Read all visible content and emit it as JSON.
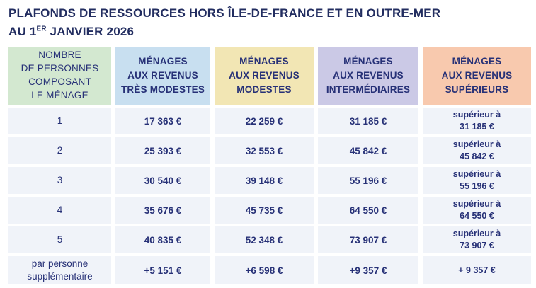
{
  "colors": {
    "title_text": "#222d60",
    "table_text": "#273177",
    "header_household_size_bg": "#d3e8d0",
    "header_tres_modestes_bg": "#c8dff0",
    "header_modestes_bg": "#f2e6b4",
    "header_intermediaires_bg": "#cbc9e6",
    "header_superieurs_bg": "#f8c9ae",
    "data_cell_bg": "#f0f3f9"
  },
  "title": {
    "line1": "PLAFONDS DE RESSOURCES HORS ÎLE-DE-FRANCE ET EN OUTRE-MER",
    "line2_prefix": "AU 1",
    "line2_sup": "ER",
    "line2_suffix": " JANVIER 2026"
  },
  "table": {
    "headers": [
      "NOMBRE\nDE PERSONNES\nCOMPOSANT\nLE MÉNAGE",
      "MÉNAGES\nAUX REVENUS\nTRÈS MODESTES",
      "MÉNAGES\nAUX REVENUS\nMODESTES",
      "MÉNAGES\nAUX REVENUS\nINTERMÉDIAIRES",
      "MÉNAGES\nAUX REVENUS\nSUPÉRIEURS"
    ],
    "rows": [
      {
        "label": "1",
        "values": [
          "17 363 €",
          "22 259 €",
          "31 185 €",
          "supérieur à\n31 185 €"
        ]
      },
      {
        "label": "2",
        "values": [
          "25 393 €",
          "32 553 €",
          "45 842 €",
          "supérieur à\n45 842 €"
        ]
      },
      {
        "label": "3",
        "values": [
          "30 540 €",
          "39 148 €",
          "55 196 €",
          "supérieur à\n55 196 €"
        ]
      },
      {
        "label": "4",
        "values": [
          "35 676 €",
          "45 735 €",
          "64 550 €",
          "supérieur à\n64 550 €"
        ]
      },
      {
        "label": "5",
        "values": [
          "40 835 €",
          "52 348 €",
          "73 907 €",
          "supérieur à\n73 907 €"
        ]
      },
      {
        "label": "par personne\nsupplémentaire",
        "values": [
          "+5 151 €",
          "+6 598 €",
          "+9 357 €",
          "+ 9 357 €"
        ]
      }
    ]
  },
  "chart_data": {
    "type": "table",
    "title": "Plafonds de ressources hors Île-de-France et en Outre-mer au 1er janvier 2026",
    "columns": [
      "Nombre de personnes composant le ménage",
      "Ménages aux revenus très modestes",
      "Ménages aux revenus modestes",
      "Ménages aux revenus intermédiaires",
      "Ménages aux revenus supérieurs"
    ],
    "rows": [
      [
        "1",
        "17 363 €",
        "22 259 €",
        "31 185 €",
        "supérieur à 31 185 €"
      ],
      [
        "2",
        "25 393 €",
        "32 553 €",
        "45 842 €",
        "supérieur à 45 842 €"
      ],
      [
        "3",
        "30 540 €",
        "39 148 €",
        "55 196 €",
        "supérieur à 55 196 €"
      ],
      [
        "4",
        "35 676 €",
        "45 735 €",
        "64 550 €",
        "supérieur à 64 550 €"
      ],
      [
        "5",
        "40 835 €",
        "52 348 €",
        "73 907 €",
        "supérieur à 73 907 €"
      ],
      [
        "par personne supplémentaire",
        "+5 151 €",
        "+6 598 €",
        "+9 357 €",
        "+ 9 357 €"
      ]
    ]
  }
}
